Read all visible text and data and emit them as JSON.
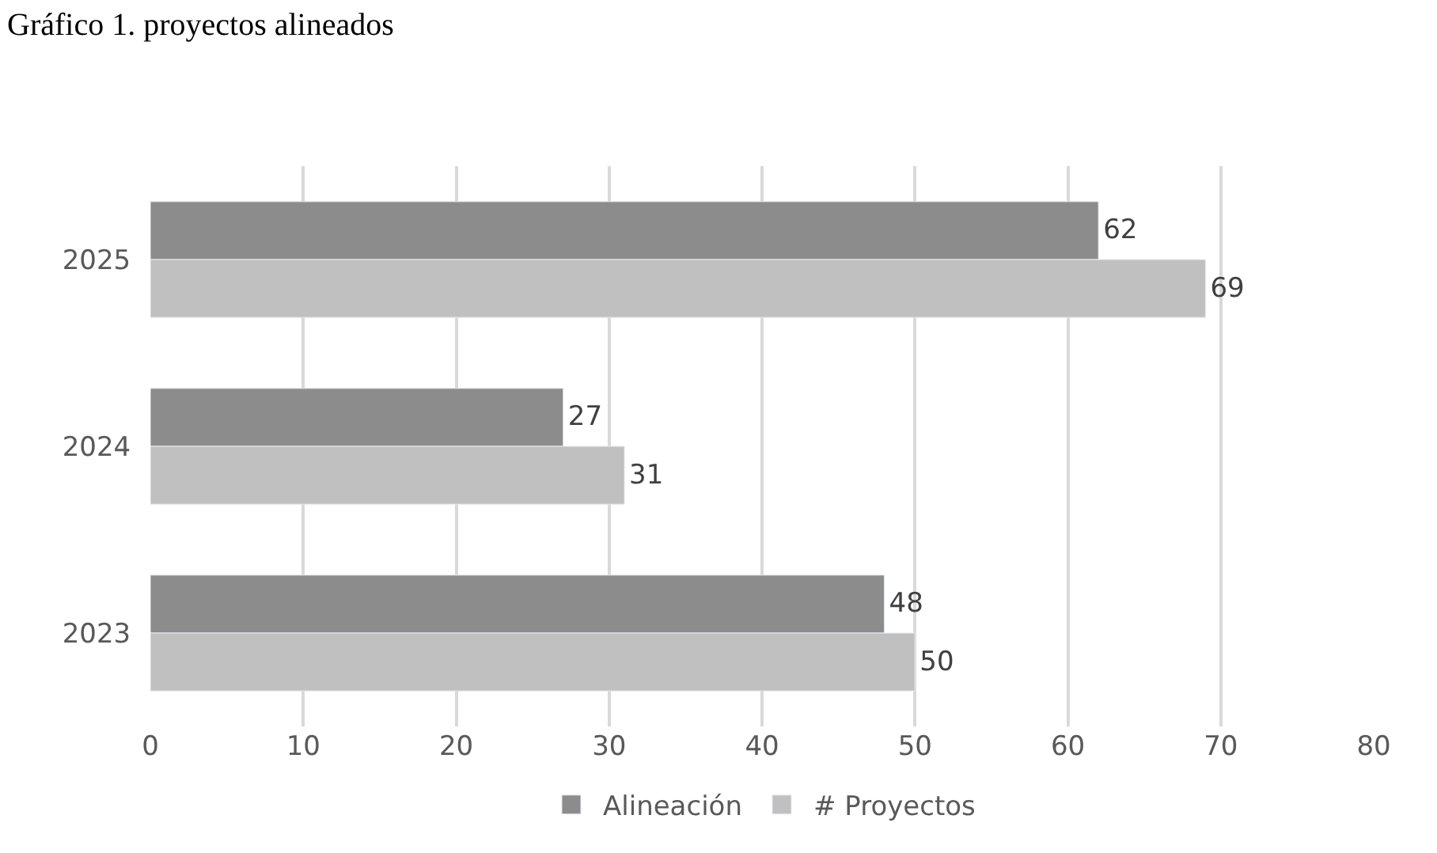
{
  "chart_data": {
    "type": "bar",
    "title": "Gráfico 1. proyectos alineados",
    "orientation": "horizontal",
    "categories": [
      "2025",
      "2024",
      "2023"
    ],
    "series": [
      {
        "name": "Alineación",
        "color": "#8c8c8c",
        "values": [
          62,
          27,
          48
        ]
      },
      {
        "name": "# Proyectos",
        "color": "#c0c0c0",
        "values": [
          69,
          31,
          50
        ]
      }
    ],
    "xlim": [
      0,
      80
    ],
    "xticks": [
      0,
      10,
      20,
      30,
      40,
      50,
      60,
      70,
      80
    ],
    "grid": "x",
    "legend": "bottom",
    "data_labels": true
  }
}
